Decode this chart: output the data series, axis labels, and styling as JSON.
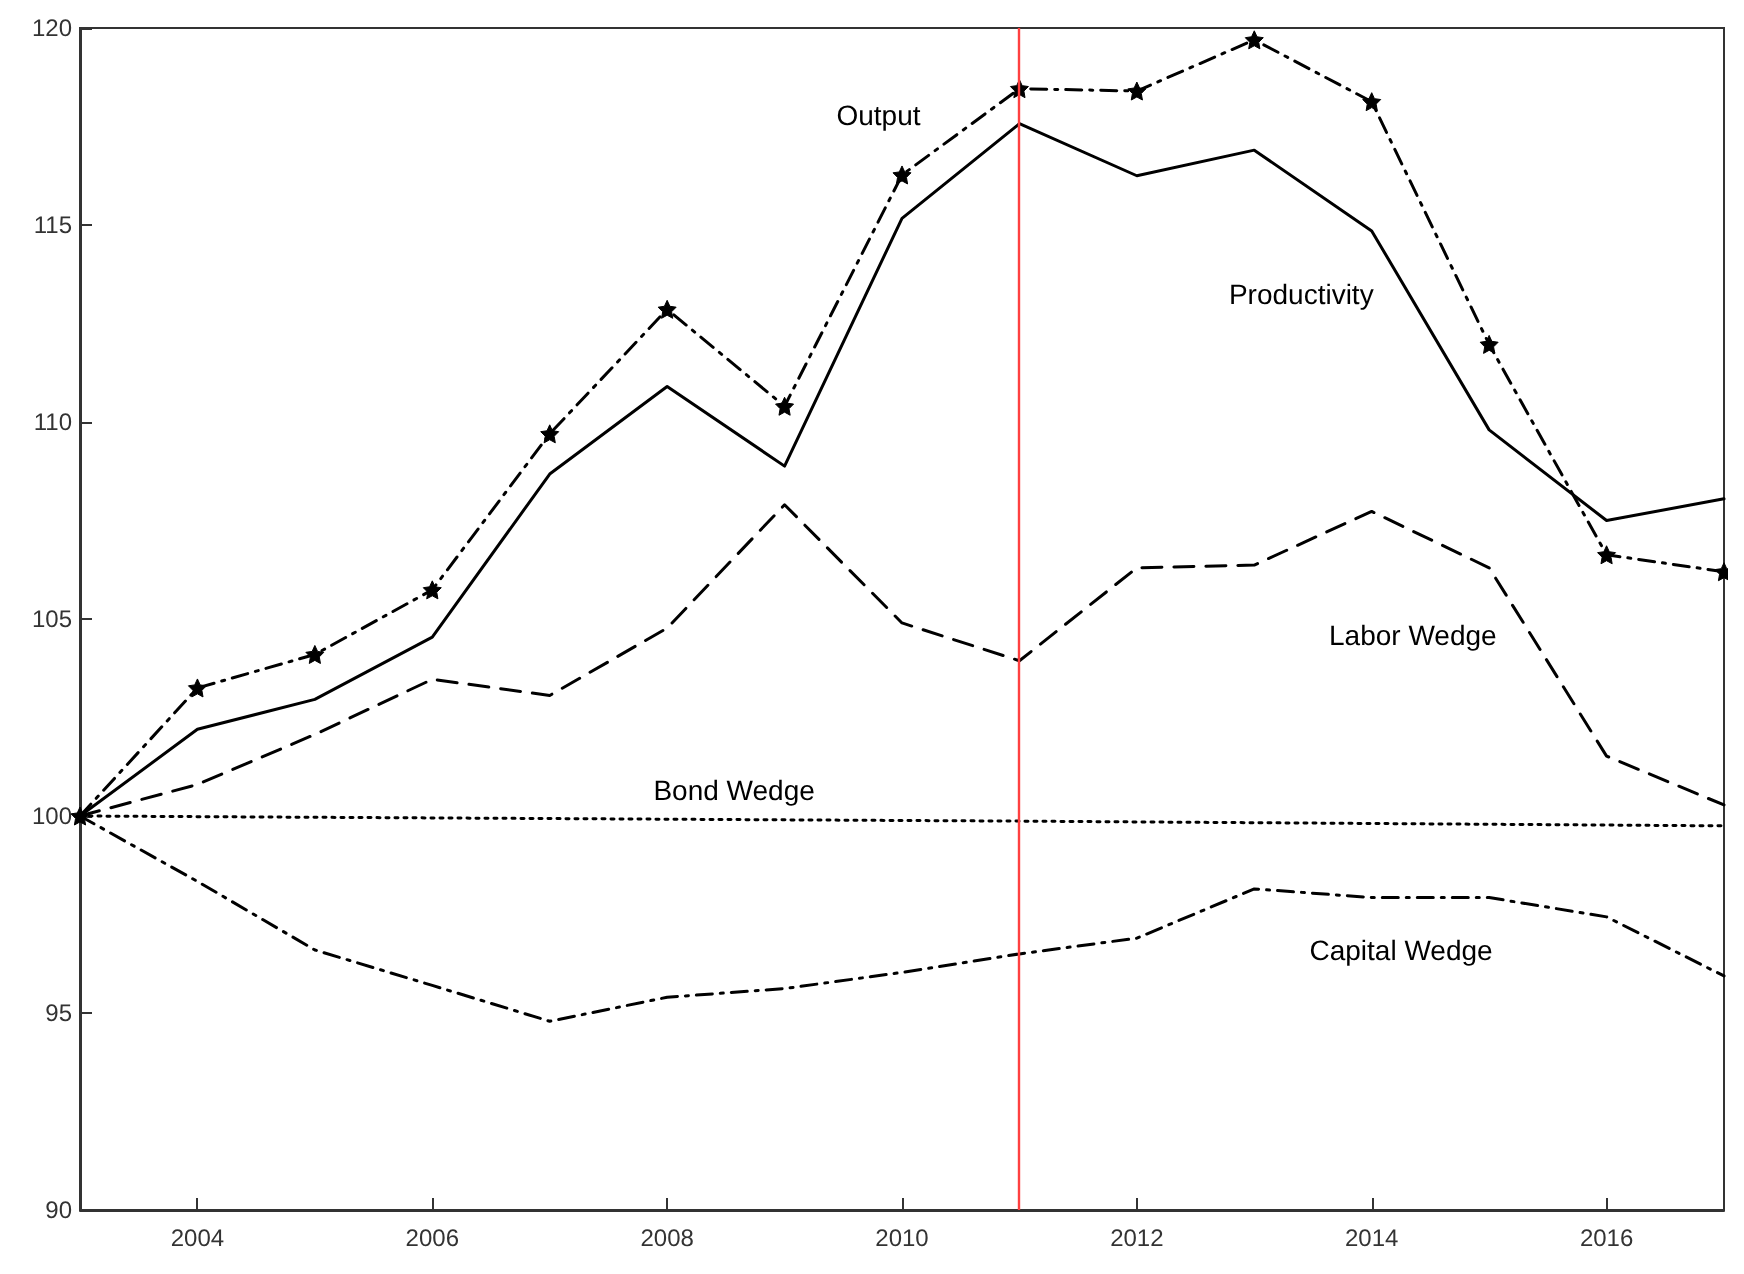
{
  "chart_data": {
    "type": "line",
    "xlim": [
      2003,
      2017
    ],
    "xticks": [
      2004,
      2006,
      2008,
      2010,
      2012,
      2014,
      2016
    ],
    "ylim": [
      90,
      120
    ],
    "yticks": [
      90,
      95,
      100,
      105,
      110,
      115,
      120
    ],
    "grid": false,
    "legend": false,
    "ref_lines": [
      {
        "axis": "x",
        "value": 2011,
        "color": "#ff4040",
        "line_style": "solid"
      }
    ],
    "series": [
      {
        "name": "Output",
        "color": "#000000",
        "marker": "star",
        "line_style": "dashdot",
        "x": [
          2003,
          2004,
          2005,
          2006,
          2007,
          2008,
          2009,
          2010,
          2011,
          2012,
          2013,
          2014,
          2015,
          2016,
          2017
        ],
        "values": [
          100,
          103.25,
          104.1,
          105.74,
          109.7,
          112.86,
          110.4,
          116.27,
          118.46,
          118.4,
          119.7,
          118.13,
          111.97,
          106.63,
          106.2
        ]
      },
      {
        "name": "Productivity",
        "color": "#000000",
        "marker": "none",
        "line_style": "solid",
        "x": [
          2003,
          2004,
          2005,
          2006,
          2007,
          2008,
          2009,
          2010,
          2011,
          2012,
          2013,
          2014,
          2015,
          2016,
          2017
        ],
        "values": [
          100,
          102.2,
          102.96,
          104.54,
          108.68,
          110.9,
          108.88,
          115.17,
          117.57,
          116.25,
          116.9,
          114.85,
          109.8,
          107.5,
          108.05
        ]
      },
      {
        "name": "Labor Wedge",
        "color": "#000000",
        "marker": "none",
        "line_style": "dashed",
        "x": [
          2003,
          2004,
          2005,
          2006,
          2007,
          2008,
          2009,
          2010,
          2011,
          2012,
          2013,
          2014,
          2015,
          2016,
          2017
        ],
        "values": [
          100,
          100.8,
          102.07,
          103.47,
          103.06,
          104.77,
          107.9,
          104.9,
          103.94,
          106.3,
          106.37,
          107.73,
          106.3,
          101.52,
          100.28
        ]
      },
      {
        "name": "Bond Wedge",
        "color": "#000000",
        "marker": "none",
        "line_style": "dotted",
        "x": [
          2003,
          2011,
          2017
        ],
        "values": [
          100,
          99.87,
          99.75
        ]
      },
      {
        "name": "Capital Wedge",
        "color": "#000000",
        "marker": "none",
        "line_style": "dashdot",
        "x": [
          2003,
          2004,
          2005,
          2006,
          2007,
          2008,
          2009,
          2010,
          2011,
          2012,
          2013,
          2014,
          2015,
          2016,
          2017
        ],
        "values": [
          100,
          98.34,
          96.6,
          95.7,
          94.79,
          95.4,
          95.62,
          96.03,
          96.5,
          96.9,
          98.15,
          97.93,
          97.93,
          97.44,
          95.94
        ]
      }
    ]
  }
}
